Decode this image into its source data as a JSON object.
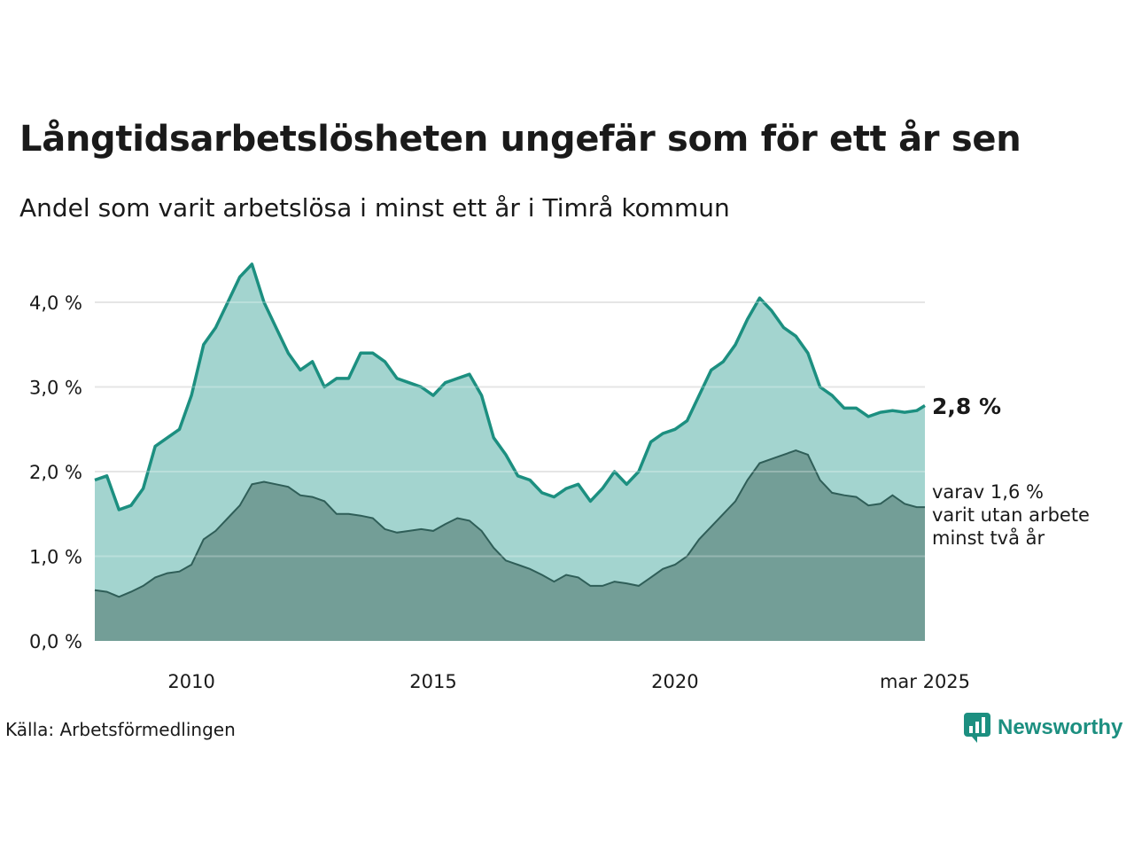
{
  "title": "Långtidsarbetslösheten ungefär som för ett år sen",
  "subtitle": "Andel som varit arbetslösa i minst ett år i Timrå kommun",
  "source": "Källa: Arbetsförmedlingen",
  "logo_text": "Newsworthy",
  "annotations": {
    "last_value": "2,8 %",
    "sub_note": [
      "varav 1,6 %",
      "varit utan arbete",
      "minst två år"
    ]
  },
  "colors": {
    "series_1_line": "#1c8f80",
    "series_1_fill": "#a3d4cf",
    "series_2_line": "#2f5e58",
    "series_2_fill": "#739e97",
    "grid": "#dddddd"
  },
  "chart_data": {
    "type": "area",
    "x_start": "2008-01",
    "x_end": "2025-03",
    "x_ticks": [
      {
        "x": 2010.0,
        "label": "2010"
      },
      {
        "x": 2015.0,
        "label": "2015"
      },
      {
        "x": 2020.0,
        "label": "2020"
      },
      {
        "x": 2025.17,
        "label": "mar 2025"
      }
    ],
    "y_ticks": [
      {
        "y": 0,
        "label": "0,0 %"
      },
      {
        "y": 1,
        "label": "1,0 %"
      },
      {
        "y": 2,
        "label": "2,0 %"
      },
      {
        "y": 3,
        "label": "3,0 %"
      },
      {
        "y": 4,
        "label": "4,0 %"
      }
    ],
    "ylim": [
      0,
      4.5
    ],
    "grid": true,
    "series": [
      {
        "name": "minst ett år",
        "values": [
          [
            2008.0,
            1.9
          ],
          [
            2008.25,
            1.95
          ],
          [
            2008.5,
            1.55
          ],
          [
            2008.75,
            1.6
          ],
          [
            2009.0,
            1.8
          ],
          [
            2009.25,
            2.3
          ],
          [
            2009.5,
            2.4
          ],
          [
            2009.75,
            2.5
          ],
          [
            2010.0,
            2.9
          ],
          [
            2010.25,
            3.5
          ],
          [
            2010.5,
            3.7
          ],
          [
            2010.75,
            4.0
          ],
          [
            2011.0,
            4.3
          ],
          [
            2011.25,
            4.45
          ],
          [
            2011.5,
            4.0
          ],
          [
            2011.75,
            3.7
          ],
          [
            2012.0,
            3.4
          ],
          [
            2012.25,
            3.2
          ],
          [
            2012.5,
            3.3
          ],
          [
            2012.75,
            3.0
          ],
          [
            2013.0,
            3.1
          ],
          [
            2013.25,
            3.1
          ],
          [
            2013.5,
            3.4
          ],
          [
            2013.75,
            3.4
          ],
          [
            2014.0,
            3.3
          ],
          [
            2014.25,
            3.1
          ],
          [
            2014.5,
            3.05
          ],
          [
            2014.75,
            3.0
          ],
          [
            2015.0,
            2.9
          ],
          [
            2015.25,
            3.05
          ],
          [
            2015.5,
            3.1
          ],
          [
            2015.75,
            3.15
          ],
          [
            2016.0,
            2.9
          ],
          [
            2016.25,
            2.4
          ],
          [
            2016.5,
            2.2
          ],
          [
            2016.75,
            1.95
          ],
          [
            2017.0,
            1.9
          ],
          [
            2017.25,
            1.75
          ],
          [
            2017.5,
            1.7
          ],
          [
            2017.75,
            1.8
          ],
          [
            2018.0,
            1.85
          ],
          [
            2018.25,
            1.65
          ],
          [
            2018.5,
            1.8
          ],
          [
            2018.75,
            2.0
          ],
          [
            2019.0,
            1.85
          ],
          [
            2019.25,
            2.0
          ],
          [
            2019.5,
            2.35
          ],
          [
            2019.75,
            2.45
          ],
          [
            2020.0,
            2.5
          ],
          [
            2020.25,
            2.6
          ],
          [
            2020.5,
            2.9
          ],
          [
            2020.75,
            3.2
          ],
          [
            2021.0,
            3.3
          ],
          [
            2021.25,
            3.5
          ],
          [
            2021.5,
            3.8
          ],
          [
            2021.75,
            4.05
          ],
          [
            2022.0,
            3.9
          ],
          [
            2022.25,
            3.7
          ],
          [
            2022.5,
            3.6
          ],
          [
            2022.75,
            3.4
          ],
          [
            2023.0,
            3.0
          ],
          [
            2023.25,
            2.9
          ],
          [
            2023.5,
            2.75
          ],
          [
            2023.75,
            2.75
          ],
          [
            2024.0,
            2.65
          ],
          [
            2024.25,
            2.7
          ],
          [
            2024.5,
            2.72
          ],
          [
            2024.75,
            2.7
          ],
          [
            2025.0,
            2.72
          ],
          [
            2025.17,
            2.78
          ]
        ]
      },
      {
        "name": "minst två år",
        "values": [
          [
            2008.0,
            0.6
          ],
          [
            2008.25,
            0.58
          ],
          [
            2008.5,
            0.52
          ],
          [
            2008.75,
            0.58
          ],
          [
            2009.0,
            0.65
          ],
          [
            2009.25,
            0.75
          ],
          [
            2009.5,
            0.8
          ],
          [
            2009.75,
            0.82
          ],
          [
            2010.0,
            0.9
          ],
          [
            2010.25,
            1.2
          ],
          [
            2010.5,
            1.3
          ],
          [
            2010.75,
            1.45
          ],
          [
            2011.0,
            1.6
          ],
          [
            2011.25,
            1.85
          ],
          [
            2011.5,
            1.88
          ],
          [
            2011.75,
            1.85
          ],
          [
            2012.0,
            1.82
          ],
          [
            2012.25,
            1.72
          ],
          [
            2012.5,
            1.7
          ],
          [
            2012.75,
            1.65
          ],
          [
            2013.0,
            1.5
          ],
          [
            2013.25,
            1.5
          ],
          [
            2013.5,
            1.48
          ],
          [
            2013.75,
            1.45
          ],
          [
            2014.0,
            1.32
          ],
          [
            2014.25,
            1.28
          ],
          [
            2014.5,
            1.3
          ],
          [
            2014.75,
            1.32
          ],
          [
            2015.0,
            1.3
          ],
          [
            2015.25,
            1.38
          ],
          [
            2015.5,
            1.45
          ],
          [
            2015.75,
            1.42
          ],
          [
            2016.0,
            1.3
          ],
          [
            2016.25,
            1.1
          ],
          [
            2016.5,
            0.95
          ],
          [
            2016.75,
            0.9
          ],
          [
            2017.0,
            0.85
          ],
          [
            2017.25,
            0.78
          ],
          [
            2017.5,
            0.7
          ],
          [
            2017.75,
            0.78
          ],
          [
            2018.0,
            0.75
          ],
          [
            2018.25,
            0.65
          ],
          [
            2018.5,
            0.65
          ],
          [
            2018.75,
            0.7
          ],
          [
            2019.0,
            0.68
          ],
          [
            2019.25,
            0.65
          ],
          [
            2019.5,
            0.75
          ],
          [
            2019.75,
            0.85
          ],
          [
            2020.0,
            0.9
          ],
          [
            2020.25,
            1.0
          ],
          [
            2020.5,
            1.2
          ],
          [
            2020.75,
            1.35
          ],
          [
            2021.0,
            1.5
          ],
          [
            2021.25,
            1.65
          ],
          [
            2021.5,
            1.9
          ],
          [
            2021.75,
            2.1
          ],
          [
            2022.0,
            2.15
          ],
          [
            2022.25,
            2.2
          ],
          [
            2022.5,
            2.25
          ],
          [
            2022.75,
            2.2
          ],
          [
            2023.0,
            1.9
          ],
          [
            2023.25,
            1.75
          ],
          [
            2023.5,
            1.72
          ],
          [
            2023.75,
            1.7
          ],
          [
            2024.0,
            1.6
          ],
          [
            2024.25,
            1.62
          ],
          [
            2024.5,
            1.72
          ],
          [
            2024.75,
            1.62
          ],
          [
            2025.0,
            1.58
          ],
          [
            2025.17,
            1.58
          ]
        ]
      }
    ]
  }
}
